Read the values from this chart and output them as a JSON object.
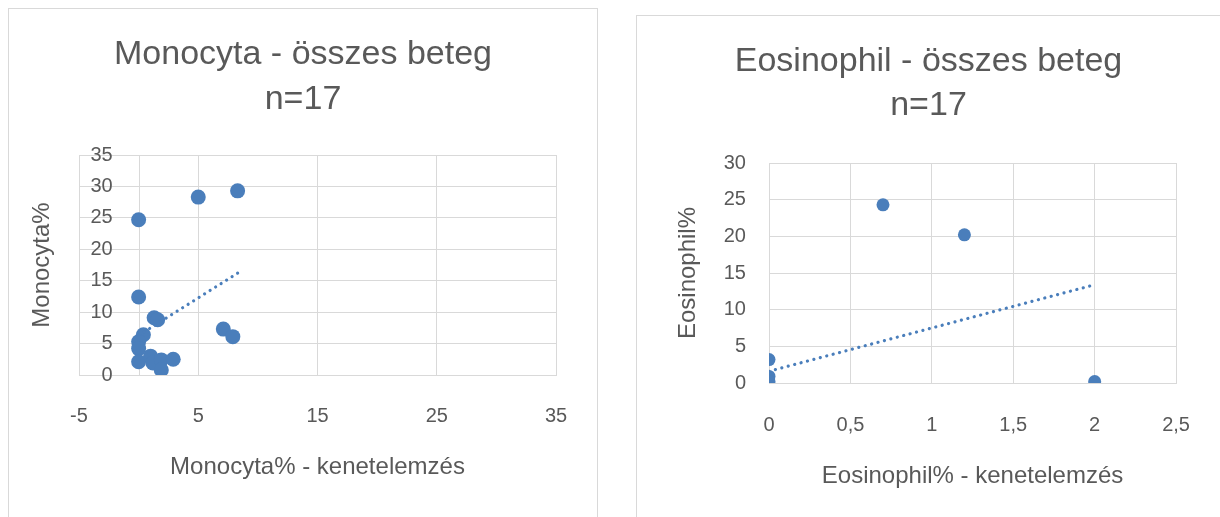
{
  "chart_data": [
    {
      "type": "scatter",
      "title": "Monocyta - összes beteg\nn=17",
      "xlabel": "Monocyta% - kenetelemzés",
      "ylabel": "Monocyta%",
      "xlim": [
        -5,
        35
      ],
      "xticks": [
        -5,
        5,
        15,
        25,
        35
      ],
      "ylim": [
        0,
        35
      ],
      "yticks": [
        0,
        5,
        10,
        15,
        20,
        25,
        30,
        35
      ],
      "grid": true,
      "legend": false,
      "marker": "circle",
      "series": [
        {
          "color": "#4a7ebb",
          "x": [
            0,
            5,
            8.3,
            0,
            1.3,
            1.6,
            0.4,
            0,
            0,
            0,
            1,
            1.2,
            1.9,
            1.9,
            2.9,
            7.1,
            7.9
          ],
          "values": [
            24.7,
            28.3,
            29.3,
            12.4,
            9.1,
            8.8,
            6.4,
            5.3,
            4.2,
            2.1,
            3,
            1.9,
            2.4,
            0.8,
            2.5,
            7.3,
            6.1
          ]
        },
        {
          "type": "line",
          "color": "#4a7ebb",
          "marker": "none",
          "line_style": "dotted",
          "x": [
            0,
            8.3
          ],
          "values": [
            6.3,
            16.2
          ]
        }
      ]
    },
    {
      "type": "scatter",
      "title": "Eosinophil - összes beteg\nn=17",
      "xlabel": "Eosinophil% - kenetelemzés",
      "ylabel": "Eosinophil%",
      "xlim": [
        0,
        2.5
      ],
      "xticks": [
        0,
        {
          "value": 0.5,
          "label": "0,5"
        },
        1,
        {
          "value": 1.5,
          "label": "1,5"
        },
        2,
        {
          "value": 2.5,
          "label": "2,5"
        }
      ],
      "ylim": [
        0,
        30
      ],
      "yticks": [
        0,
        5,
        10,
        15,
        20,
        25,
        30
      ],
      "grid": true,
      "legend": false,
      "marker": "circle",
      "series": [
        {
          "color": "#4a7ebb",
          "x": [
            0.7,
            1.2,
            2,
            0,
            0,
            0
          ],
          "values": [
            24.3,
            20.2,
            0.2,
            3.2,
            0.9,
            0.2
          ]
        },
        {
          "type": "line",
          "color": "#4a7ebb",
          "marker": "none",
          "line_style": "dotted",
          "x": [
            0,
            2
          ],
          "values": [
            1.6,
            13.4
          ]
        }
      ]
    }
  ]
}
